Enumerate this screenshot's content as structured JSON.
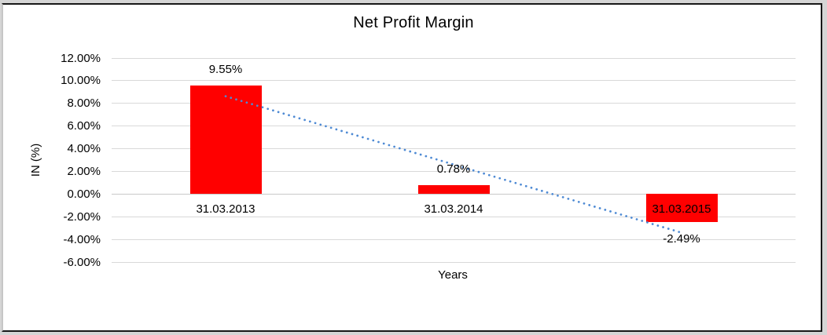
{
  "chart_data": {
    "type": "bar",
    "title": "Net Profit Margin",
    "xlabel": "Years",
    "ylabel": "IN (%)",
    "categories": [
      "31.03.2013",
      "31.03.2014",
      "31.03.2015"
    ],
    "values": [
      9.55,
      0.78,
      -2.49
    ],
    "data_labels": [
      "9.55%",
      "0.78%",
      "-2.49%"
    ],
    "y_ticks": [
      {
        "label": "12.00%",
        "value": 12
      },
      {
        "label": "10.00%",
        "value": 10
      },
      {
        "label": "8.00%",
        "value": 8
      },
      {
        "label": "6.00%",
        "value": 6
      },
      {
        "label": "4.00%",
        "value": 4
      },
      {
        "label": "2.00%",
        "value": 2
      },
      {
        "label": "0.00%",
        "value": 0
      },
      {
        "label": "-2.00%",
        "value": -2
      },
      {
        "label": "-4.00%",
        "value": -4
      },
      {
        "label": "-6.00%",
        "value": -6
      }
    ],
    "ylim": [
      -6,
      12
    ],
    "grid": "horizontal",
    "legend": "none",
    "bar_color": "#FF0000",
    "grid_color": "#D9D9D9",
    "axis_line_color": "#C9C9C9",
    "text_color": "#000000",
    "trendline": {
      "style": "dotted",
      "color": "#4E8AD4",
      "start_value": 8.63,
      "end_value": -3.41
    }
  }
}
